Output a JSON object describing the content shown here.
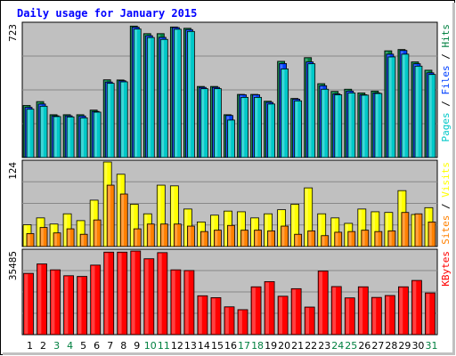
{
  "chart_data": {
    "type": "bar",
    "title": "Daily usage for January 2015",
    "categories": [
      "1",
      "2",
      "3",
      "4",
      "5",
      "6",
      "7",
      "8",
      "9",
      "10",
      "11",
      "12",
      "13",
      "14",
      "15",
      "16",
      "17",
      "18",
      "19",
      "20",
      "21",
      "22",
      "23",
      "24",
      "25",
      "26",
      "27",
      "28",
      "29",
      "30",
      "31"
    ],
    "weekend_days": [
      "3",
      "4",
      "10",
      "11",
      "17",
      "18",
      "24",
      "25",
      "31"
    ],
    "panels": [
      {
        "name": "hits-files-pages",
        "max_label": "723",
        "ymax": 723,
        "right_label": [
          {
            "text": "Pages",
            "color": "#00c8c8"
          },
          {
            "text": " / ",
            "color": "#000000"
          },
          {
            "text": "Files",
            "color": "#0040ff"
          },
          {
            "text": " / ",
            "color": "#000000"
          },
          {
            "text": "Hits",
            "color": "#008040"
          }
        ],
        "series": [
          {
            "name": "Hits",
            "color": "#008040",
            "values": [
              282,
              303,
              232,
              232,
              232,
              257,
              421,
              420,
              712,
              671,
              671,
              707,
              700,
              385,
              385,
              232,
              342,
              342,
              305,
              521,
              320,
              541,
              400,
              358,
              370,
              350,
              360,
              578,
              585,
              518,
              473
            ]
          },
          {
            "name": "Files",
            "color": "#0040ff",
            "values": [
              272,
              290,
              226,
              226,
              225,
              250,
              409,
              416,
              706,
              660,
              651,
              704,
              693,
              380,
              380,
              228,
              340,
              340,
              299,
              509,
              316,
              518,
              389,
              345,
              360,
              340,
              350,
              560,
              580,
              508,
              459
            ]
          },
          {
            "name": "Pages",
            "color": "#00c8c8",
            "values": [
              262,
              278,
              222,
              220,
              215,
              246,
              402,
              410,
              696,
              650,
              640,
              695,
              683,
              373,
              373,
              203,
              326,
              326,
              290,
              480,
              307,
              508,
              370,
              340,
              350,
              338,
              347,
              545,
              560,
              495,
              450
            ]
          }
        ]
      },
      {
        "name": "visits-sites",
        "max_label": "124",
        "ymax": 124,
        "right_label": [
          {
            "text": "Sites",
            "color": "#ff8000"
          },
          {
            "text": " / ",
            "color": "#000000"
          },
          {
            "text": "Visits",
            "color": "#ffff00"
          }
        ],
        "series": [
          {
            "name": "Visits",
            "color": "#ffff00",
            "values": [
              32,
              42,
              33,
              48,
              38,
              68,
              124,
              106,
              62,
              48,
              90,
              89,
              55,
              36,
              46,
              52,
              51,
              42,
              48,
              54,
              62,
              86,
              48,
              42,
              34,
              55,
              51,
              50,
              82,
              47,
              57
            ]
          },
          {
            "name": "Sites",
            "color": "#ff8000",
            "values": [
              19,
              28,
              20,
              26,
              18,
              39,
              90,
              77,
              26,
              33,
              33,
              33,
              30,
              22,
              24,
              31,
              24,
              24,
              23,
              30,
              18,
              23,
              16,
              21,
              22,
              24,
              22,
              23,
              50,
              48,
              36
            ]
          }
        ]
      },
      {
        "name": "kbytes",
        "max_label": "35485",
        "ymax": 35485,
        "right_label": [
          {
            "text": "KBytes",
            "color": "#ff0000"
          }
        ],
        "series": [
          {
            "name": "KBytes",
            "color": "#ff0000",
            "values": [
              26000,
              30000,
              27500,
              25000,
              24700,
              29500,
              35000,
              35000,
              35485,
              32200,
              34800,
              27500,
              27200,
              16500,
              15700,
              11800,
              10600,
              20300,
              22500,
              16300,
              19500,
              11700,
              27000,
              20400,
              15600,
              20300,
              15800,
              16600,
              20300,
              23000,
              17700
            ]
          }
        ]
      }
    ]
  }
}
